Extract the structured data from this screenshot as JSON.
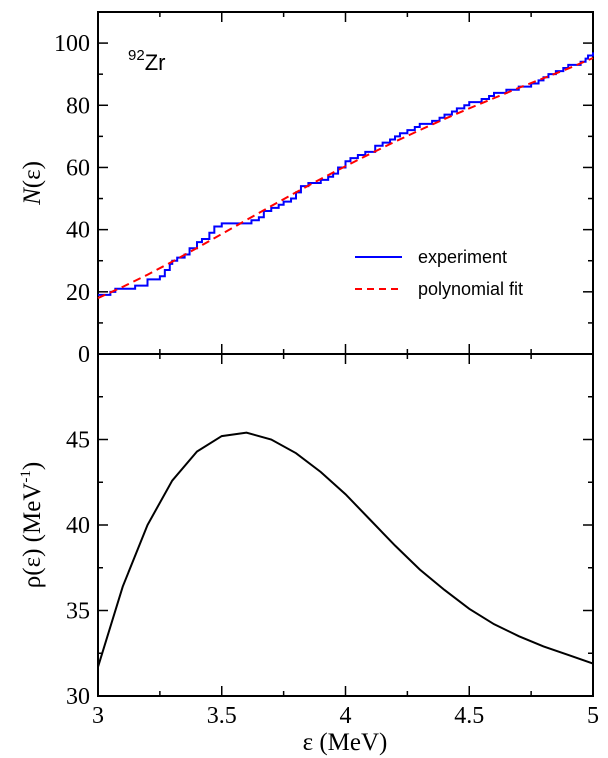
{
  "chart_data": [
    {
      "type": "line",
      "panel": "top",
      "annotation": {
        "mass": "92",
        "element": "Zr"
      },
      "xlim": [
        3,
        5
      ],
      "ylim": [
        0,
        110
      ],
      "yticks": [
        0,
        20,
        40,
        60,
        80,
        100
      ],
      "ylabel": {
        "italic": "N",
        "rest": "(ε)"
      },
      "legend_position": "lower-right",
      "grid": false,
      "series": [
        {
          "name": "experiment",
          "color": "#0000ff",
          "style": "solid",
          "drawstyle": "steps",
          "x": [
            3.0,
            3.05,
            3.07,
            3.1,
            3.15,
            3.18,
            3.2,
            3.22,
            3.25,
            3.27,
            3.29,
            3.3,
            3.32,
            3.35,
            3.37,
            3.4,
            3.42,
            3.45,
            3.47,
            3.5,
            3.53,
            3.55,
            3.58,
            3.62,
            3.65,
            3.67,
            3.7,
            3.73,
            3.75,
            3.78,
            3.8,
            3.82,
            3.85,
            3.88,
            3.9,
            3.93,
            3.95,
            3.97,
            4.0,
            4.02,
            4.05,
            4.08,
            4.1,
            4.12,
            4.15,
            4.18,
            4.2,
            4.22,
            4.25,
            4.28,
            4.3,
            4.33,
            4.35,
            4.38,
            4.4,
            4.43,
            4.45,
            4.48,
            4.5,
            4.53,
            4.55,
            4.58,
            4.6,
            4.63,
            4.65,
            4.68,
            4.7,
            4.73,
            4.75,
            4.78,
            4.8,
            4.82,
            4.85,
            4.88,
            4.9,
            4.93,
            4.95,
            4.97,
            4.98,
            5.0
          ],
          "y": [
            19,
            20,
            21,
            21,
            22,
            22,
            24,
            24,
            25,
            27,
            29,
            30,
            31,
            32,
            34,
            36,
            37,
            39,
            41,
            42,
            42,
            42,
            42,
            43,
            44,
            46,
            47,
            48,
            49,
            50,
            52,
            54,
            55,
            55,
            56,
            57,
            58,
            60,
            62,
            63,
            64,
            65,
            65,
            67,
            68,
            69,
            70,
            71,
            72,
            73,
            74,
            74,
            75,
            76,
            77,
            78,
            79,
            80,
            81,
            81,
            82,
            83,
            84,
            84,
            85,
            85,
            86,
            86,
            87,
            88,
            89,
            90,
            91,
            92,
            93,
            93,
            94,
            95,
            96,
            97
          ]
        },
        {
          "name": "polynomial fit",
          "color": "#ff0000",
          "style": "dashed",
          "x": [
            3.0,
            3.1,
            3.2,
            3.3,
            3.4,
            3.5,
            3.6,
            3.7,
            3.8,
            3.9,
            4.0,
            4.1,
            4.2,
            4.3,
            4.4,
            4.5,
            4.6,
            4.7,
            4.8,
            4.9,
            5.0
          ],
          "y": [
            18,
            21.6,
            25.5,
            29.7,
            34.1,
            38.6,
            43.1,
            47.6,
            52.0,
            56.3,
            60.4,
            64.4,
            68.3,
            72.0,
            75.6,
            79.0,
            82.3,
            85.6,
            88.7,
            91.8,
            95.2
          ]
        }
      ]
    },
    {
      "type": "line",
      "panel": "bottom",
      "xlim": [
        3,
        5
      ],
      "ylim": [
        30,
        50
      ],
      "xticks": [
        3,
        3.5,
        4,
        4.5,
        5
      ],
      "yticks": [
        30,
        35,
        40,
        45
      ],
      "xlabel": "ε (MeV)",
      "ylabel": {
        "base": "ρ(ε) (MeV",
        "sup": "-1",
        "tail": ")"
      },
      "grid": false,
      "series": [
        {
          "color": "#000000",
          "style": "solid",
          "x": [
            3.0,
            3.1,
            3.2,
            3.3,
            3.4,
            3.5,
            3.6,
            3.7,
            3.8,
            3.9,
            4.0,
            4.1,
            4.2,
            4.3,
            4.4,
            4.5,
            4.6,
            4.7,
            4.8,
            4.9,
            5.0
          ],
          "y": [
            31.7,
            36.4,
            40.0,
            42.6,
            44.3,
            45.2,
            45.4,
            45.0,
            44.2,
            43.1,
            41.8,
            40.3,
            38.8,
            37.4,
            36.2,
            35.1,
            34.2,
            33.5,
            32.9,
            32.4,
            31.9
          ]
        }
      ]
    }
  ]
}
